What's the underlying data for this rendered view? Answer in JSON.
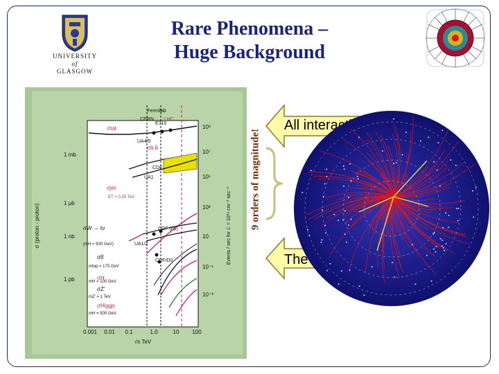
{
  "title": {
    "line1": "Rare Phenomena –",
    "line2": "Huge Background"
  },
  "university": {
    "line1": "UNIVERSITY",
    "line2": "of",
    "line3": "GLASGOW"
  },
  "annotations": {
    "orders": "9 orders of magnitude!",
    "all": "All interactions",
    "higgs": "The HIGGS"
  },
  "plot": {
    "top_labels": [
      "Fermilab",
      "CERN",
      "LHC"
    ],
    "left_ticks": [
      "1 mb",
      "1 μb",
      "1 nb",
      "1 pb"
    ],
    "right_ticks": [
      "10⁹",
      "10⁷",
      "10⁵",
      "10³",
      "10",
      "10⁻¹",
      "10⁻³"
    ],
    "x_ticks": [
      "0.001",
      "0.01",
      "0.1",
      "1.0",
      "10",
      "100"
    ],
    "xlabel": "√s  TeV",
    "ylabel": "σ (proton - proton)",
    "y2label": "Events / sec for ℒ = 10³⁴ cm⁻² sec⁻¹",
    "curve_labels": [
      "σtot",
      "σb b̄",
      "σjet",
      "σW → ℓν",
      "σtt̄",
      "σH",
      "σZ'",
      "σHiggs"
    ],
    "experiment_labels": [
      "E710",
      "UA4/5",
      "CDF",
      "UA1",
      "CDF (p̄p)",
      "UA1/2",
      "CDF/D0"
    ],
    "mass_labels": [
      "(mH = 500 GeV)",
      "mtop = 175 GeV",
      "mH = 100 GeV",
      "mZ' = 1 TeV",
      "mH = 500 GeV"
    ],
    "jet_label": "ET > 0.25 TeV",
    "colors": {
      "bg": "#a6c896",
      "inner": "#ffffff",
      "curve": "#d81b60",
      "black": "#111111",
      "yellow": "#e8e000",
      "green": "#2e7d32"
    }
  },
  "colors": {
    "title": "#1a237e",
    "arrow_fill": "#fff9a8",
    "arrow_stroke": "#8a7a2a",
    "orders_text": "#7a2c0a",
    "event_blue": "#1a1a8c",
    "event_red": "#e01818"
  }
}
